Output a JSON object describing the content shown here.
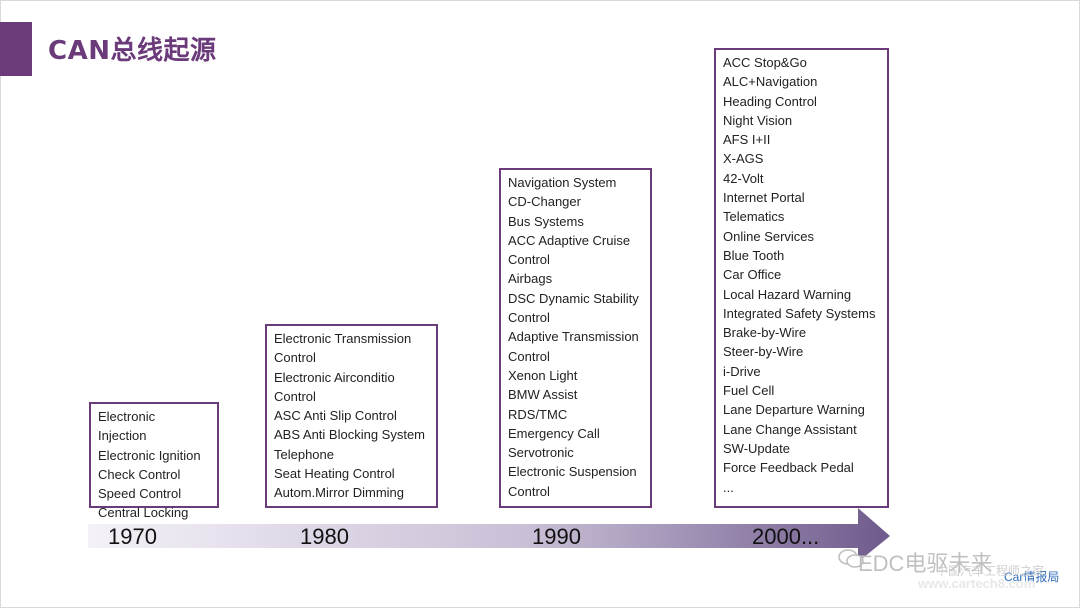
{
  "title": "CAN总线起源",
  "eras": {
    "e1970": {
      "year": "1970",
      "items": [
        "Electronic",
        "Injection",
        "Electronic Ignition",
        "Check Control",
        "Speed Control",
        "Central Locking"
      ]
    },
    "e1980": {
      "year": "1980",
      "items": [
        "Electronic Transmission",
        "Control",
        "Electronic Airconditio",
        "Control",
        "ASC Anti Slip Control",
        "ABS Anti Blocking System",
        "Telephone",
        "Seat Heating Control",
        "Autom.Mirror Dimming"
      ]
    },
    "e1990": {
      "year": "1990",
      "items": [
        "Navigation System",
        "CD-Changer",
        "Bus Systems",
        "ACC Adaptive Cruise",
        "Control",
        "Airbags",
        "DSC Dynamic Stability",
        "Control",
        "Adaptive Transmission",
        "Control",
        "Xenon  Light",
        "BMW  Assist",
        "RDS/TMC",
        "Emergency Call",
        "Servotronic",
        "Electronic Suspension",
        "Control"
      ]
    },
    "e2000": {
      "year": "2000...",
      "items": [
        "ACC Stop&Go",
        "ALC+Navigation",
        "Heading Control",
        "Night Vision",
        "AFS I+II",
        "X-AGS",
        "42-Volt",
        "Internet Portal",
        "Telematics",
        "Online Services",
        "Blue Tooth",
        "Car Office",
        "Local Hazard Warning",
        "Integrated Safety Systems",
        "Brake-by-Wire",
        "Steer-by-Wire",
        "i-Drive",
        "Fuel Cell",
        "Lane Departure Warning",
        "Lane Change Assistant",
        "SW-Update",
        "Force Feedback Pedal",
        "..."
      ]
    }
  },
  "watermarks": {
    "edc": "EDC电驱未来",
    "site_cn": "中国汽车工程师之家",
    "carinfo": "Car情报局",
    "url": "www.cartech8.com"
  },
  "colors": {
    "accent": "#6b3a7a",
    "arrow_light": "#f4f1f7",
    "arrow_dark": "#6e5a8c"
  }
}
